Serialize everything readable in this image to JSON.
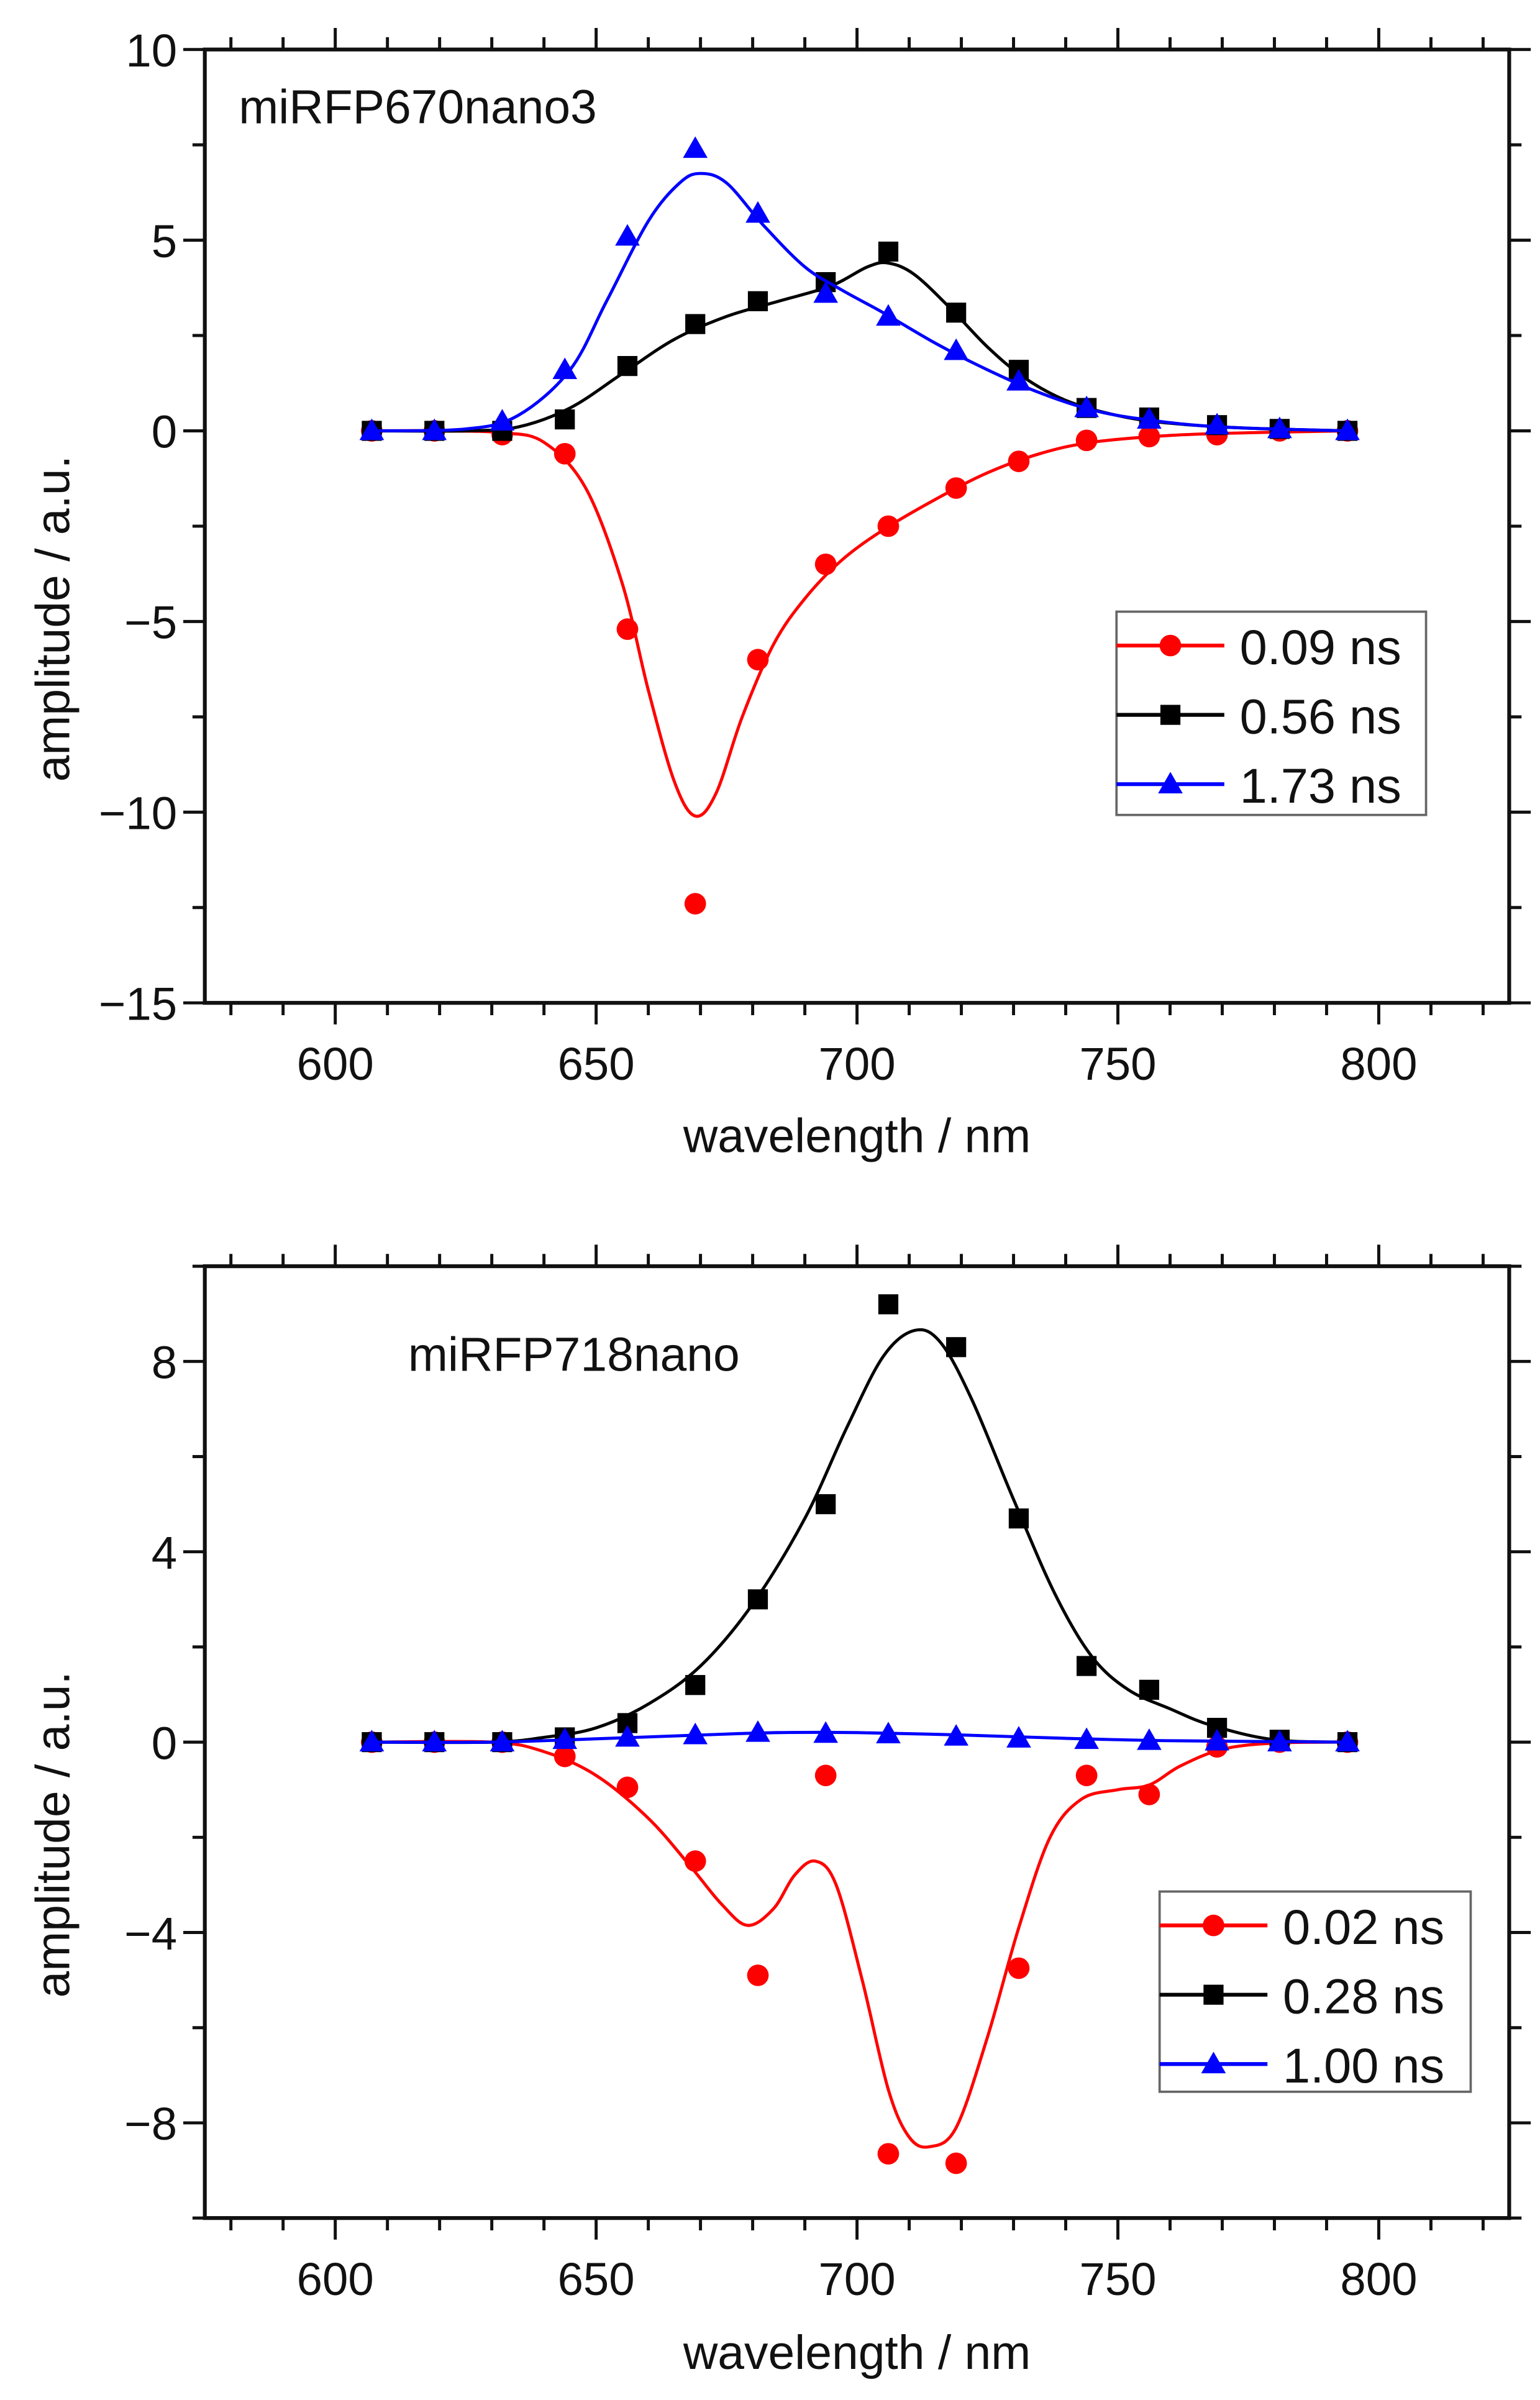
{
  "chart_data": [
    {
      "type": "scatter",
      "title": "miRFP670nano3",
      "xlabel": "wavelength / nm",
      "ylabel": "amplitude / a.u.",
      "xlim": [
        575,
        825
      ],
      "ylim": [
        -15,
        10
      ],
      "x_ticks": [
        600,
        650,
        700,
        750,
        800
      ],
      "x_tick_labels": [
        "600",
        "650",
        "700",
        "750",
        "800"
      ],
      "x_minor_step": 10,
      "y_ticks": [
        10,
        5,
        0,
        -5,
        -10,
        -15
      ],
      "y_tick_labels": [
        "10",
        "5",
        "0",
        "−5",
        "−10",
        "−15"
      ],
      "y_minor_step": 2.5,
      "grid": false,
      "legend_position": "right",
      "x": [
        607,
        619,
        632,
        644,
        656,
        669,
        681,
        694,
        706,
        719,
        731,
        744,
        756,
        769,
        781,
        794
      ],
      "series": [
        {
          "name": "0.09 ns",
          "color": "#ff0000",
          "marker": "circle",
          "values": [
            0,
            0,
            -0.1,
            -0.6,
            -5.2,
            -12.4,
            -6.0,
            -3.5,
            -2.5,
            -1.5,
            -0.8,
            -0.25,
            -0.15,
            -0.1,
            0,
            0
          ],
          "fit": [
            [
              607,
              0
            ],
            [
              620,
              0
            ],
            [
              632,
              -0.05
            ],
            [
              640,
              -0.3
            ],
            [
              648,
              -1.5
            ],
            [
              655,
              -4
            ],
            [
              660,
              -6.8
            ],
            [
              665,
              -9.2
            ],
            [
              669,
              -10.1
            ],
            [
              673,
              -9.5
            ],
            [
              678,
              -7.5
            ],
            [
              684,
              -5.6
            ],
            [
              690,
              -4.4
            ],
            [
              697,
              -3.4
            ],
            [
              705,
              -2.6
            ],
            [
              715,
              -1.8
            ],
            [
              725,
              -1.1
            ],
            [
              735,
              -0.6
            ],
            [
              745,
              -0.3
            ],
            [
              760,
              -0.12
            ],
            [
              775,
              -0.05
            ],
            [
              794,
              0
            ]
          ]
        },
        {
          "name": "0.56 ns",
          "color": "#000000",
          "marker": "square",
          "values": [
            0,
            0,
            0,
            0.3,
            1.7,
            2.8,
            3.4,
            3.9,
            4.7,
            3.1,
            1.6,
            0.6,
            0.35,
            0.15,
            0.05,
            0
          ],
          "fit": [
            [
              607,
              0
            ],
            [
              625,
              0
            ],
            [
              635,
              0.1
            ],
            [
              645,
              0.6
            ],
            [
              655,
              1.5
            ],
            [
              665,
              2.4
            ],
            [
              675,
              3.0
            ],
            [
              685,
              3.4
            ],
            [
              695,
              3.8
            ],
            [
              702,
              4.3
            ],
            [
              706,
              4.4
            ],
            [
              711,
              4.1
            ],
            [
              718,
              3.2
            ],
            [
              725,
              2.2
            ],
            [
              732,
              1.4
            ],
            [
              740,
              0.8
            ],
            [
              750,
              0.4
            ],
            [
              760,
              0.2
            ],
            [
              775,
              0.07
            ],
            [
              794,
              0
            ]
          ]
        },
        {
          "name": "1.73 ns",
          "color": "#0000ff",
          "marker": "triangle",
          "values": [
            0,
            0,
            0.25,
            1.6,
            5.1,
            7.4,
            5.7,
            3.6,
            3.0,
            2.1,
            1.3,
            0.6,
            0.3,
            0.15,
            0.05,
            0
          ],
          "fit": [
            [
              607,
              0
            ],
            [
              625,
              0.05
            ],
            [
              635,
              0.4
            ],
            [
              645,
              1.6
            ],
            [
              652,
              3.4
            ],
            [
              660,
              5.5
            ],
            [
              666,
              6.5
            ],
            [
              670,
              6.75
            ],
            [
              675,
              6.5
            ],
            [
              682,
              5.4
            ],
            [
              690,
              4.3
            ],
            [
              697,
              3.7
            ],
            [
              705,
              3.1
            ],
            [
              715,
              2.3
            ],
            [
              725,
              1.6
            ],
            [
              735,
              1.0
            ],
            [
              745,
              0.55
            ],
            [
              755,
              0.3
            ],
            [
              770,
              0.1
            ],
            [
              794,
              0
            ]
          ]
        }
      ]
    },
    {
      "type": "scatter",
      "title": "miRFP718nano",
      "xlabel": "wavelength / nm",
      "ylabel": "amplitude / a.u.",
      "xlim": [
        575,
        825
      ],
      "ylim": [
        -10,
        10
      ],
      "x_ticks": [
        600,
        650,
        700,
        750,
        800
      ],
      "x_tick_labels": [
        "600",
        "650",
        "700",
        "750",
        "800"
      ],
      "x_minor_step": 10,
      "y_ticks": [
        8,
        4,
        0,
        -4,
        -8
      ],
      "y_tick_labels": [
        "8",
        "4",
        "0",
        "−4",
        "−8"
      ],
      "y_minor_step": 2,
      "grid": false,
      "legend_position": "bottom-right",
      "x": [
        607,
        619,
        632,
        644,
        656,
        669,
        681,
        694,
        706,
        719,
        731,
        744,
        756,
        769,
        781,
        794
      ],
      "series": [
        {
          "name": "0.02 ns",
          "color": "#ff0000",
          "marker": "circle",
          "values": [
            0,
            0,
            0,
            -0.3,
            -0.95,
            -2.5,
            -4.9,
            -0.7,
            -8.65,
            -8.85,
            -4.75,
            -0.7,
            -1.1,
            -0.1,
            0,
            0
          ],
          "fit": [
            [
              607,
              0
            ],
            [
              630,
              0
            ],
            [
              640,
              -0.2
            ],
            [
              650,
              -0.7
            ],
            [
              660,
              -1.6
            ],
            [
              668,
              -2.6
            ],
            [
              674,
              -3.4
            ],
            [
              679,
              -3.85
            ],
            [
              684,
              -3.5
            ],
            [
              688,
              -2.8
            ],
            [
              692,
              -2.5
            ],
            [
              696,
              -3.0
            ],
            [
              701,
              -5
            ],
            [
              706,
              -7.3
            ],
            [
              710,
              -8.3
            ],
            [
              714,
              -8.5
            ],
            [
              719,
              -8.1
            ],
            [
              725,
              -6.2
            ],
            [
              731,
              -3.9
            ],
            [
              737,
              -2.0
            ],
            [
              743,
              -1.2
            ],
            [
              750,
              -1.0
            ],
            [
              756,
              -0.9
            ],
            [
              762,
              -0.5
            ],
            [
              770,
              -0.15
            ],
            [
              780,
              -0.02
            ],
            [
              794,
              0
            ]
          ]
        },
        {
          "name": "0.28 ns",
          "color": "#000000",
          "marker": "square",
          "values": [
            0,
            0,
            0,
            0.1,
            0.4,
            1.2,
            3.0,
            5.0,
            9.2,
            8.3,
            4.7,
            1.6,
            1.1,
            0.3,
            0.05,
            0
          ],
          "fit": [
            [
              607,
              0
            ],
            [
              630,
              0
            ],
            [
              640,
              0.1
            ],
            [
              650,
              0.3
            ],
            [
              660,
              0.8
            ],
            [
              670,
              1.6
            ],
            [
              680,
              2.9
            ],
            [
              690,
              4.7
            ],
            [
              698,
              6.6
            ],
            [
              705,
              8.1
            ],
            [
              711,
              8.65
            ],
            [
              716,
              8.4
            ],
            [
              722,
              7.2
            ],
            [
              730,
              5.1
            ],
            [
              738,
              3.1
            ],
            [
              745,
              1.8
            ],
            [
              752,
              1.1
            ],
            [
              760,
              0.7
            ],
            [
              768,
              0.35
            ],
            [
              780,
              0.05
            ],
            [
              794,
              0
            ]
          ]
        },
        {
          "name": "1.00 ns",
          "color": "#0000ff",
          "marker": "triangle",
          "values": [
            0,
            0,
            0,
            0.05,
            0.1,
            0.15,
            0.2,
            0.18,
            0.17,
            0.12,
            0.08,
            0.05,
            0.03,
            0.02,
            0,
            0
          ],
          "fit": [
            [
              607,
              0
            ],
            [
              630,
              0
            ],
            [
              650,
              0.07
            ],
            [
              670,
              0.15
            ],
            [
              685,
              0.2
            ],
            [
              700,
              0.2
            ],
            [
              720,
              0.15
            ],
            [
              740,
              0.08
            ],
            [
              760,
              0.03
            ],
            [
              794,
              0
            ]
          ]
        }
      ]
    }
  ]
}
